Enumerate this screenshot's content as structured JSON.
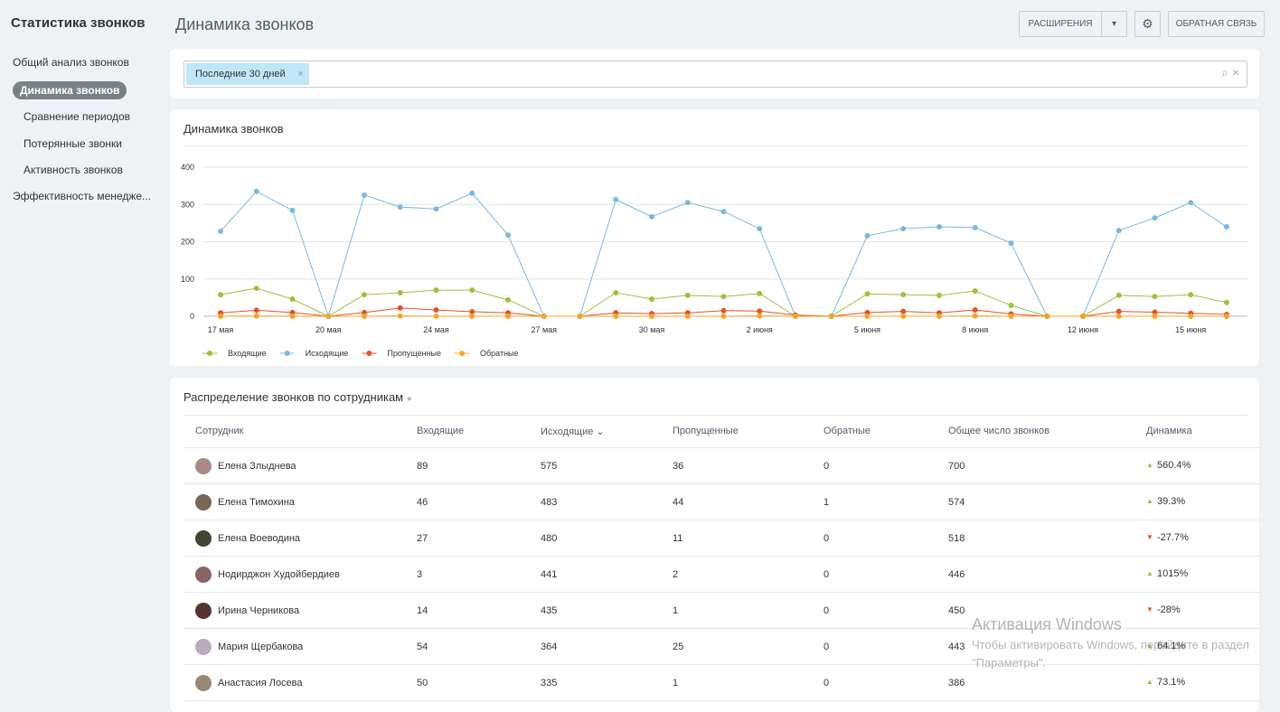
{
  "sidebar": {
    "title": "Статистика звонков",
    "items": [
      "Общий анализ звонков",
      "Динамика звонков",
      "Сравнение периодов",
      "Потерянные звонки",
      "Активность звонков",
      "Эффективность менедже..."
    ]
  },
  "header": {
    "title": "Динамика звонков",
    "buttons": [
      "РАСШИРЕНИЯ",
      "ОБРАТНАЯ СВЯЗЬ"
    ]
  },
  "filter": {
    "tag": "Последние 30 дней"
  },
  "chart_data": {
    "type": "line",
    "title": "Динамика звонков",
    "categories": [
      "17 мая",
      null,
      null,
      "20 мая",
      null,
      null,
      "24 мая",
      null,
      null,
      "27 мая",
      null,
      null,
      "30 мая",
      null,
      null,
      "2 июня",
      null,
      null,
      "5 июня",
      null,
      null,
      "8 июня",
      null,
      null,
      "12 июня",
      null,
      null,
      "15 июня",
      null
    ],
    "series": [
      {
        "name": "Входящие",
        "color": "#9dc13c",
        "values": [
          58,
          75,
          46,
          0,
          58,
          63,
          70,
          70,
          44,
          0,
          0,
          63,
          46,
          56,
          53,
          61,
          0,
          0,
          60,
          58,
          56,
          68,
          29,
          0,
          0,
          56,
          53,
          58,
          37
        ]
      },
      {
        "name": "Исходящие",
        "color": "#7ab8e0",
        "values": [
          228,
          335,
          284,
          0,
          325,
          293,
          288,
          330,
          218,
          0,
          0,
          313,
          267,
          305,
          281,
          235,
          0,
          0,
          216,
          235,
          240,
          238,
          196,
          0,
          0,
          230,
          264,
          305,
          240
        ]
      },
      {
        "name": "Пропущенные",
        "color": "#e8502e",
        "values": [
          9,
          16,
          10,
          0,
          10,
          22,
          17,
          12,
          9,
          0,
          0,
          9,
          7,
          9,
          15,
          14,
          3,
          0,
          10,
          13,
          9,
          17,
          6,
          0,
          0,
          13,
          11,
          8,
          5
        ]
      },
      {
        "name": "Обратные",
        "color": "#f5a623",
        "values": [
          0,
          1,
          0,
          0,
          0,
          1,
          0,
          0,
          0,
          0,
          0,
          0,
          0,
          0,
          0,
          1,
          0,
          0,
          0,
          0,
          0,
          1,
          0,
          0,
          0,
          0,
          0,
          0,
          0
        ]
      }
    ],
    "ylim": [
      0,
      400
    ],
    "yticks": [
      0,
      100,
      200,
      300,
      400
    ],
    "grid": true
  },
  "table": {
    "title": "Распределение звонков по сотрудникам",
    "columns": [
      "Сотрудник",
      "Входящие",
      "Исходящие",
      "Пропущенные",
      "Обратные",
      "Общее число звонков",
      "Динамика"
    ],
    "rows": [
      [
        "Елена Злыднева",
        89,
        575,
        36,
        0,
        700,
        "560.4%"
      ],
      [
        "Елена Тимохина",
        46,
        483,
        44,
        1,
        574,
        "39.3%"
      ],
      [
        "Елена Воеводина",
        27,
        480,
        11,
        0,
        518,
        "-27.7%"
      ],
      [
        "Нодирджон Худойбердиев",
        3,
        441,
        2,
        0,
        446,
        "1015%"
      ],
      [
        "Ирина Черникова",
        14,
        435,
        1,
        0,
        450,
        "-28%"
      ],
      [
        "Мария Щербакова",
        54,
        364,
        25,
        0,
        443,
        "64.1%"
      ],
      [
        "Анастасия Лосева",
        50,
        335,
        1,
        0,
        386,
        "73.1%"
      ]
    ]
  },
  "watermark": {
    "title": "Активация Windows",
    "text": "Чтобы активировать Windows, перейдите в раздел",
    "text2": "\"Параметры\"."
  }
}
